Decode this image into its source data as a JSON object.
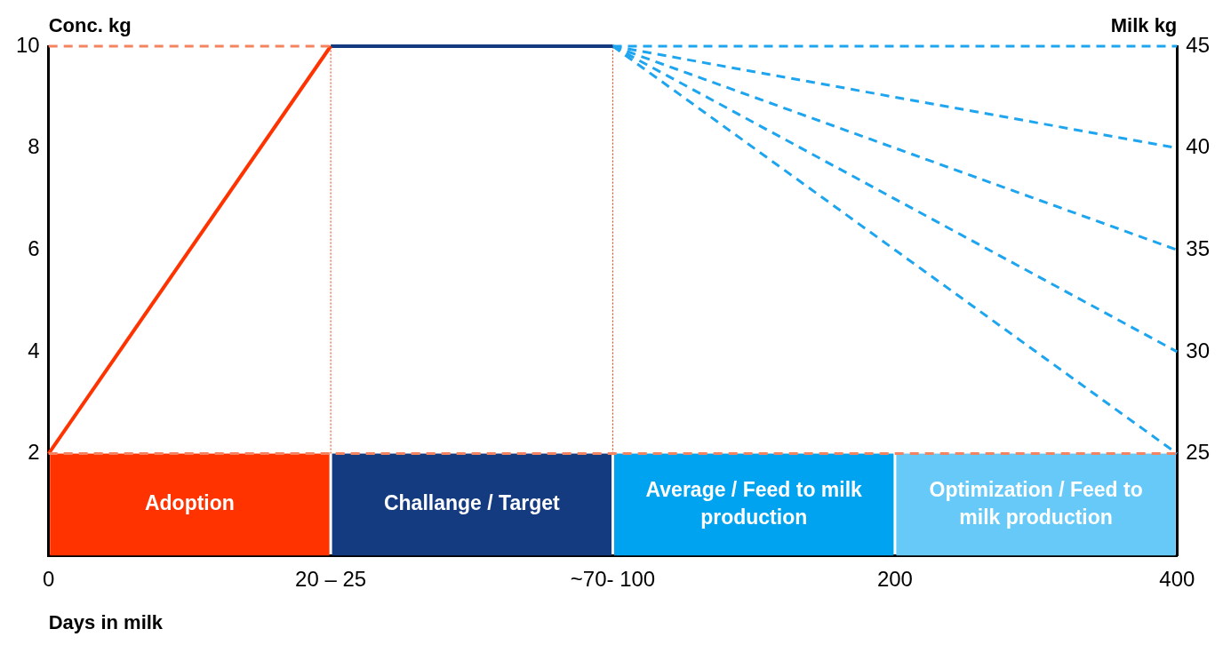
{
  "chart_data": {
    "type": "line",
    "x_label": "Days in milk",
    "y_label": "Conc. kg",
    "y2_label": "Milk kg",
    "categories": [
      "0",
      "20 – 25",
      "~70- 100",
      "200",
      "400"
    ],
    "series": [
      {
        "color": "#f4845f",
        "line_style": "dashed",
        "values": [
          10,
          10,
          null,
          null,
          null
        ]
      },
      {
        "color": "#f4845f",
        "line_style": "dashed",
        "values": [
          2,
          2,
          2,
          2,
          2
        ]
      },
      {
        "color": "#ff3300",
        "line_style": "solid",
        "values": [
          2,
          10,
          null,
          null,
          null
        ]
      },
      {
        "color": "#143b80",
        "line_style": "solid",
        "values": [
          null,
          10,
          10,
          null,
          null
        ]
      },
      {
        "color": "#1ea5f0",
        "line_style": "dashed",
        "axis": "y2",
        "values": [
          null,
          null,
          45,
          null,
          45
        ]
      },
      {
        "color": "#1ea5f0",
        "line_style": "dashed",
        "axis": "y2",
        "values": [
          null,
          null,
          45,
          null,
          40
        ]
      },
      {
        "color": "#1ea5f0",
        "line_style": "dashed",
        "axis": "y2",
        "values": [
          null,
          null,
          45,
          null,
          35
        ]
      },
      {
        "color": "#1ea5f0",
        "line_style": "dashed",
        "axis": "y2",
        "values": [
          null,
          null,
          45,
          null,
          30
        ]
      },
      {
        "color": "#1ea5f0",
        "line_style": "dashed",
        "axis": "y2",
        "values": [
          null,
          null,
          45,
          null,
          25
        ]
      }
    ],
    "ylim": [
      0,
      10
    ],
    "yticks": [
      2,
      4,
      6,
      8,
      10
    ],
    "y2lim": [
      20,
      45
    ],
    "y2ticks": [
      25,
      30,
      35,
      40,
      45
    ],
    "grid": false,
    "phase_band": [
      0,
      2
    ],
    "phases": [
      {
        "label": "Adoption",
        "from": "0",
        "to": "20 – 25",
        "color": "#ff3300"
      },
      {
        "label": "Challange / Target",
        "from": "20 – 25",
        "to": "~70- 100",
        "color": "#143b80"
      },
      {
        "label": "Average / Feed to milk production",
        "from": "~70- 100",
        "to": "200",
        "color": "#00a3ef"
      },
      {
        "label": "Optimization / Feed to milk production",
        "from": "200",
        "to": "400",
        "color": "#66c9f8"
      }
    ],
    "vertical_lines": [
      {
        "x": "20 – 25",
        "y": [
          2,
          10
        ],
        "color": "#ff3300"
      },
      {
        "x": "~70- 100",
        "y": [
          2,
          10
        ],
        "color": "#ff3300"
      }
    ]
  }
}
